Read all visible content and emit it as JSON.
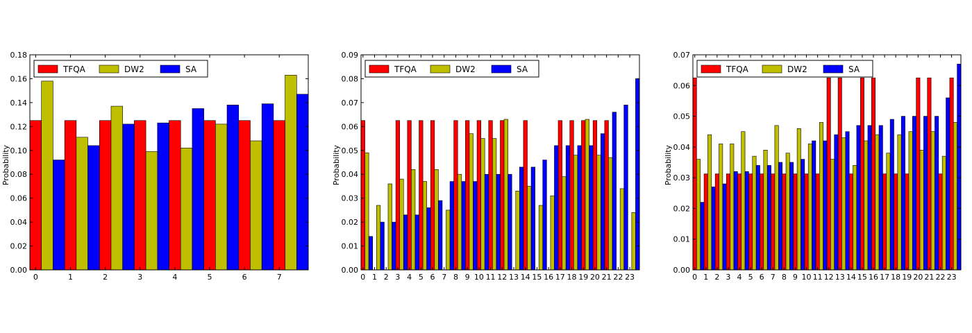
{
  "chart_data": [
    {
      "type": "bar",
      "ylabel": "Probability",
      "ylim": [
        0,
        0.18
      ],
      "yticks": [
        "0.00",
        "0.02",
        "0.04",
        "0.06",
        "0.08",
        "0.10",
        "0.12",
        "0.14",
        "0.16",
        "0.18"
      ],
      "categories": [
        "0",
        "1",
        "2",
        "3",
        "4",
        "5",
        "6",
        "7"
      ],
      "legend_position": "top-left",
      "series": [
        {
          "name": "TFQA",
          "color": "#ff0000",
          "values": [
            0.125,
            0.125,
            0.125,
            0.125,
            0.125,
            0.125,
            0.125,
            0.125
          ]
        },
        {
          "name": "DW2",
          "color": "#bfbf00",
          "values": [
            0.158,
            0.111,
            0.137,
            0.099,
            0.102,
            0.122,
            0.108,
            0.163
          ]
        },
        {
          "name": "SA",
          "color": "#0000ff",
          "values": [
            0.092,
            0.104,
            0.122,
            0.123,
            0.135,
            0.138,
            0.139,
            0.147
          ]
        }
      ]
    },
    {
      "type": "bar",
      "ylabel": "Probability",
      "ylim": [
        0,
        0.09
      ],
      "yticks": [
        "0.00",
        "0.01",
        "0.02",
        "0.03",
        "0.04",
        "0.05",
        "0.06",
        "0.07",
        "0.08",
        "0.09"
      ],
      "categories": [
        "0",
        "1",
        "2",
        "3",
        "4",
        "5",
        "6",
        "7",
        "8",
        "9",
        "10",
        "11",
        "12",
        "13",
        "14",
        "15",
        "16",
        "17",
        "18",
        "19",
        "20",
        "21",
        "22",
        "23"
      ],
      "legend_position": "top-left",
      "series": [
        {
          "name": "TFQA",
          "color": "#ff0000",
          "values": [
            0.0625,
            0,
            0,
            0.0625,
            0.0625,
            0.0625,
            0.0625,
            0,
            0.0625,
            0.0625,
            0.0625,
            0.0625,
            0.0625,
            0,
            0.0625,
            0,
            0,
            0.0625,
            0.0625,
            0.0625,
            0.0625,
            0.0625,
            0,
            0
          ]
        },
        {
          "name": "DW2",
          "color": "#bfbf00",
          "values": [
            0.049,
            0.027,
            0.036,
            0.038,
            0.042,
            0.037,
            0.042,
            0.025,
            0.04,
            0.057,
            0.055,
            0.055,
            0.063,
            0.033,
            0.035,
            0.027,
            0.031,
            0.039,
            0.048,
            0.063,
            0.048,
            0.047,
            0.034,
            0.024
          ]
        },
        {
          "name": "SA",
          "color": "#0000ff",
          "values": [
            0.014,
            0.02,
            0.02,
            0.023,
            0.023,
            0.026,
            0.029,
            0.037,
            0.037,
            0.037,
            0.04,
            0.04,
            0.04,
            0.043,
            0.043,
            0.046,
            0.052,
            0.052,
            0.052,
            0.052,
            0.057,
            0.066,
            0.069,
            0.08
          ]
        }
      ]
    },
    {
      "type": "bar",
      "ylabel": "Probability",
      "ylim": [
        0,
        0.07
      ],
      "yticks": [
        "0.00",
        "0.01",
        "0.02",
        "0.03",
        "0.04",
        "0.05",
        "0.06",
        "0.07"
      ],
      "categories": [
        "0",
        "1",
        "2",
        "3",
        "4",
        "5",
        "6",
        "7",
        "8",
        "9",
        "10",
        "11",
        "12",
        "13",
        "14",
        "15",
        "16",
        "17",
        "18",
        "19",
        "20",
        "21",
        "22",
        "23"
      ],
      "legend_position": "top-left",
      "series": [
        {
          "name": "TFQA",
          "color": "#ff0000",
          "values": [
            0.0625,
            0.03125,
            0.03125,
            0.03125,
            0.03125,
            0.03125,
            0.03125,
            0.03125,
            0.03125,
            0.03125,
            0.03125,
            0.03125,
            0.0625,
            0.0625,
            0.03125,
            0.0625,
            0.0625,
            0.03125,
            0.03125,
            0.03125,
            0.0625,
            0.0625,
            0.03125,
            0.0625
          ]
        },
        {
          "name": "DW2",
          "color": "#bfbf00",
          "values": [
            0.036,
            0.044,
            0.041,
            0.041,
            0.045,
            0.037,
            0.039,
            0.047,
            0.038,
            0.046,
            0.041,
            0.048,
            0.036,
            0.043,
            0.034,
            0.042,
            0.044,
            0.038,
            0.044,
            0.045,
            0.039,
            0.045,
            0.037,
            0.048
          ]
        },
        {
          "name": "SA",
          "color": "#0000ff",
          "values": [
            0.022,
            0.027,
            0.028,
            0.032,
            0.032,
            0.034,
            0.034,
            0.035,
            0.035,
            0.036,
            0.042,
            0.042,
            0.044,
            0.045,
            0.047,
            0.047,
            0.047,
            0.049,
            0.05,
            0.05,
            0.05,
            0.05,
            0.056,
            0.067
          ]
        }
      ]
    }
  ]
}
